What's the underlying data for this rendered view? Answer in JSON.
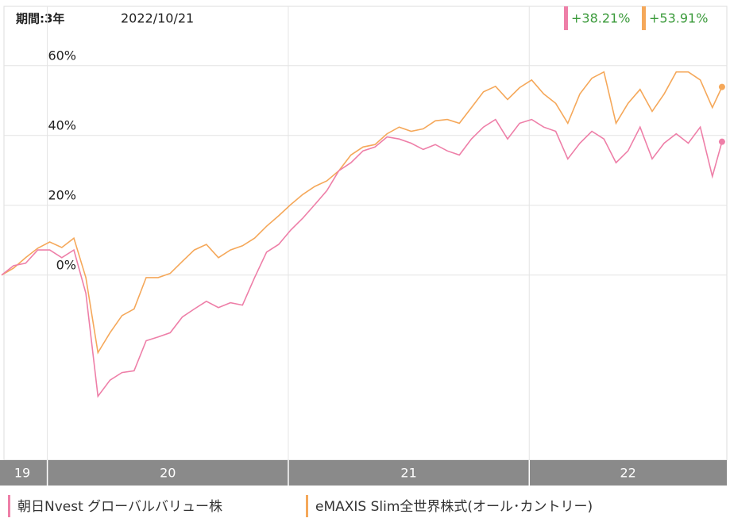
{
  "chart_data": {
    "type": "line",
    "period_label": "期間:3年",
    "date_label": "2022/10/21",
    "x": [
      2019.81,
      2019.86,
      2019.91,
      2019.96,
      2020.01,
      2020.06,
      2020.11,
      2020.16,
      2020.21,
      2020.26,
      2020.31,
      2020.36,
      2020.41,
      2020.46,
      2020.51,
      2020.56,
      2020.61,
      2020.66,
      2020.71,
      2020.76,
      2020.81,
      2020.86,
      2020.91,
      2020.96,
      2021.01,
      2021.06,
      2021.11,
      2021.16,
      2021.21,
      2021.26,
      2021.31,
      2021.36,
      2021.41,
      2021.46,
      2021.51,
      2021.56,
      2021.61,
      2021.66,
      2021.71,
      2021.76,
      2021.81,
      2021.86,
      2021.91,
      2021.96,
      2022.01,
      2022.06,
      2022.11,
      2022.16,
      2022.21,
      2022.26,
      2022.31,
      2022.36,
      2022.41,
      2022.46,
      2022.51,
      2022.56,
      2022.61,
      2022.66,
      2022.71,
      2022.76,
      2022.8
    ],
    "xlim": [
      2019.82,
      2022.82
    ],
    "xticks": [
      2020,
      2021,
      2022
    ],
    "year_labels": [
      "19",
      "20",
      "21",
      "22"
    ],
    "ylim": [
      -53,
      77
    ],
    "yticks": [
      {
        "value": 0,
        "label": "0%"
      },
      {
        "value": 20,
        "label": "20%"
      },
      {
        "value": 40,
        "label": "40%"
      },
      {
        "value": 60,
        "label": "60%"
      }
    ],
    "grid": true,
    "series": [
      {
        "name": "朝日Nvest グローバルバリュー株",
        "color": "#ee7fa8",
        "end_label": "+38.21%",
        "values": [
          0,
          2.7,
          3.4,
          7.2,
          7.2,
          5,
          7.2,
          -5.2,
          -34.7,
          -30.1,
          -27.9,
          -27.4,
          -18.8,
          -17.7,
          -16.5,
          -12,
          -9.7,
          -7.5,
          -9.3,
          -7.9,
          -8.6,
          -0.7,
          6.6,
          8.8,
          12.9,
          16.3,
          20.2,
          24.2,
          29.9,
          32.2,
          35.6,
          36.7,
          39.6,
          39,
          37.8,
          36,
          37.4,
          35.6,
          34.4,
          39,
          42.4,
          44.6,
          39,
          43.5,
          44.6,
          42.4,
          41.2,
          33.3,
          37.8,
          41.2,
          39,
          32.2,
          35.6,
          42.4,
          33.3,
          37.8,
          40.5,
          37.8,
          42.4,
          28.3,
          38.21
        ]
      },
      {
        "name": "eMAXIS Slim全世界株式(オール･カントリー)",
        "color": "#f5a85a",
        "end_label": "+53.91%",
        "values": [
          0,
          2,
          5,
          7.7,
          9.5,
          7.9,
          10.6,
          -0.7,
          -22.2,
          -16.5,
          -11.6,
          -9.7,
          -0.7,
          -0.7,
          0.5,
          3.9,
          7.2,
          8.8,
          5,
          7.2,
          8.4,
          10.6,
          14,
          17,
          20.2,
          23.1,
          25.4,
          27,
          29.9,
          34.4,
          36.7,
          37.4,
          40.5,
          42.4,
          41.2,
          41.9,
          44.2,
          44.6,
          43.5,
          48,
          52.5,
          54.1,
          50.3,
          53.7,
          55.9,
          51.9,
          49.2,
          43.5,
          51.9,
          56.4,
          58.2,
          43.5,
          49.2,
          53.2,
          46.9,
          51.9,
          58.2,
          58.2,
          55.9,
          48,
          53.91
        ]
      }
    ]
  }
}
